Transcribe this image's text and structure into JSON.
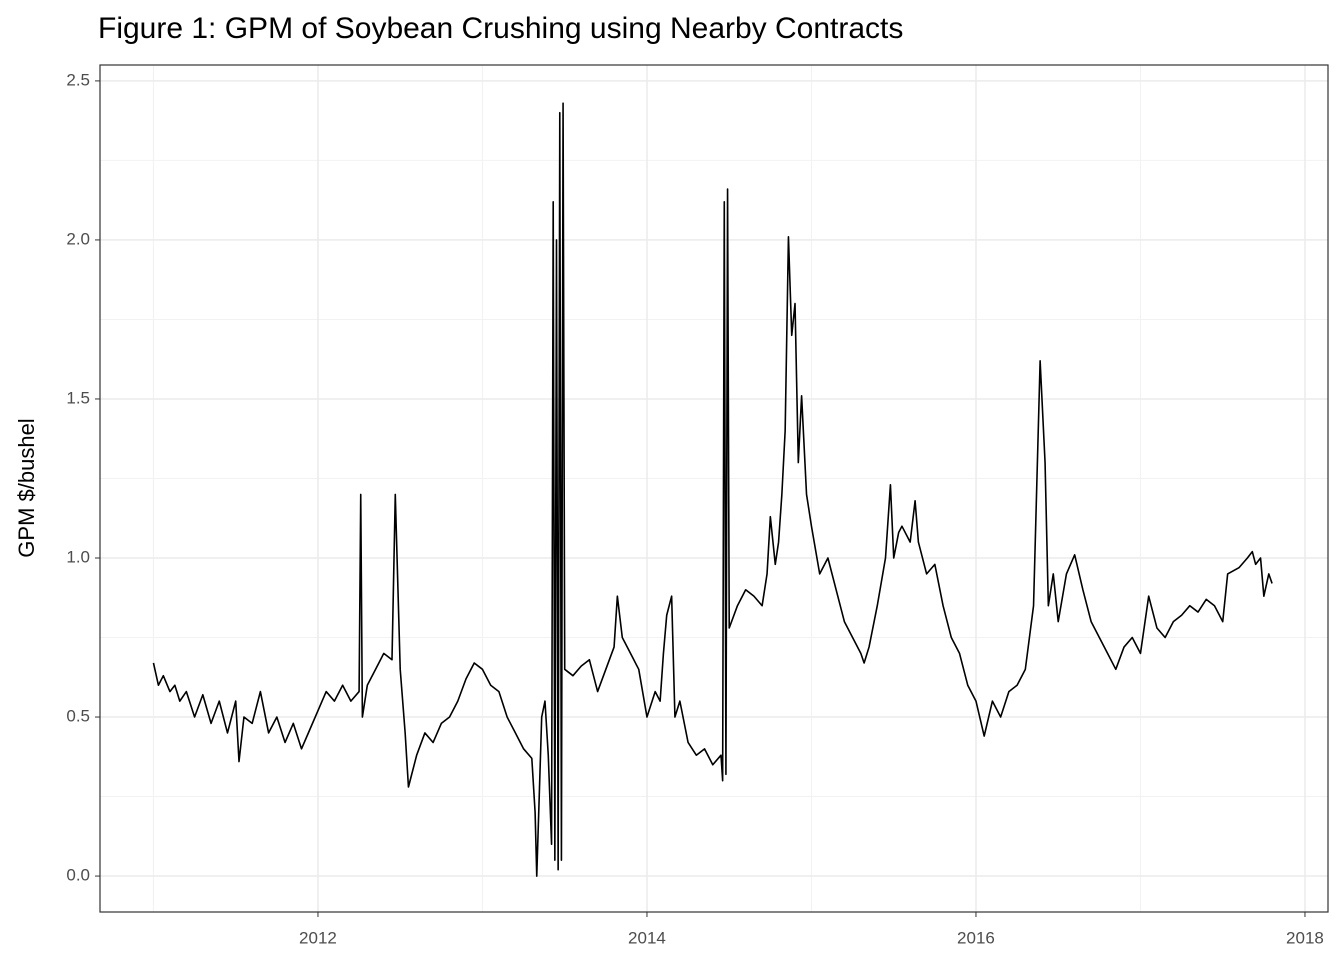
{
  "chart_data": {
    "type": "line",
    "title": "Figure 1: GPM of Soybean Crushing using Nearby Contracts",
    "y_label": "GPM $/bushel",
    "x": [
      2011.0,
      2011.03,
      2011.06,
      2011.1,
      2011.13,
      2011.16,
      2011.2,
      2011.25,
      2011.3,
      2011.35,
      2011.4,
      2011.45,
      2011.5,
      2011.52,
      2011.55,
      2011.6,
      2011.65,
      2011.7,
      2011.75,
      2011.8,
      2011.85,
      2011.9,
      2011.95,
      2012.0,
      2012.05,
      2012.1,
      2012.15,
      2012.2,
      2012.25,
      2012.26,
      2012.27,
      2012.3,
      2012.35,
      2012.4,
      2012.45,
      2012.47,
      2012.5,
      2012.53,
      2012.55,
      2012.6,
      2012.65,
      2012.7,
      2012.75,
      2012.8,
      2012.85,
      2012.9,
      2012.95,
      2013.0,
      2013.05,
      2013.1,
      2013.15,
      2013.2,
      2013.25,
      2013.3,
      2013.32,
      2013.33,
      2013.36,
      2013.38,
      2013.4,
      2013.42,
      2013.43,
      2013.44,
      2013.45,
      2013.46,
      2013.47,
      2013.48,
      2013.49,
      2013.5,
      2013.55,
      2013.6,
      2013.65,
      2013.7,
      2013.75,
      2013.8,
      2013.82,
      2013.85,
      2013.9,
      2013.95,
      2014.0,
      2014.05,
      2014.08,
      2014.1,
      2014.12,
      2014.15,
      2014.17,
      2014.2,
      2014.25,
      2014.3,
      2014.35,
      2014.4,
      2014.45,
      2014.46,
      2014.47,
      2014.48,
      2014.49,
      2014.5,
      2014.55,
      2014.6,
      2014.65,
      2014.7,
      2014.73,
      2014.75,
      2014.78,
      2014.8,
      2014.82,
      2014.84,
      2014.86,
      2014.88,
      2014.9,
      2014.92,
      2014.94,
      2014.97,
      2015.0,
      2015.05,
      2015.1,
      2015.15,
      2015.2,
      2015.25,
      2015.3,
      2015.32,
      2015.35,
      2015.4,
      2015.45,
      2015.48,
      2015.5,
      2015.53,
      2015.55,
      2015.6,
      2015.63,
      2015.65,
      2015.7,
      2015.75,
      2015.8,
      2015.85,
      2015.9,
      2015.95,
      2016.0,
      2016.05,
      2016.1,
      2016.15,
      2016.2,
      2016.25,
      2016.3,
      2016.35,
      2016.39,
      2016.42,
      2016.44,
      2016.47,
      2016.5,
      2016.55,
      2016.6,
      2016.65,
      2016.7,
      2016.75,
      2016.8,
      2016.85,
      2016.9,
      2016.95,
      2017.0,
      2017.05,
      2017.1,
      2017.15,
      2017.2,
      2017.25,
      2017.3,
      2017.35,
      2017.4,
      2017.45,
      2017.5,
      2017.53,
      2017.6,
      2017.65,
      2017.68,
      2017.7,
      2017.73,
      2017.75,
      2017.78,
      2017.8
    ],
    "series": [
      {
        "color": "#000000",
        "values": [
          0.67,
          0.6,
          0.63,
          0.58,
          0.6,
          0.55,
          0.58,
          0.5,
          0.57,
          0.48,
          0.55,
          0.45,
          0.55,
          0.36,
          0.5,
          0.48,
          0.58,
          0.45,
          0.5,
          0.42,
          0.48,
          0.4,
          0.46,
          0.52,
          0.58,
          0.55,
          0.6,
          0.55,
          0.58,
          1.2,
          0.5,
          0.6,
          0.65,
          0.7,
          0.68,
          1.2,
          0.65,
          0.45,
          0.28,
          0.38,
          0.45,
          0.42,
          0.48,
          0.5,
          0.55,
          0.62,
          0.67,
          0.65,
          0.6,
          0.58,
          0.5,
          0.45,
          0.4,
          0.37,
          0.2,
          0.0,
          0.5,
          0.55,
          0.38,
          0.1,
          2.12,
          0.05,
          2.0,
          0.02,
          2.4,
          0.05,
          2.43,
          0.65,
          0.63,
          0.66,
          0.68,
          0.58,
          0.65,
          0.72,
          0.88,
          0.75,
          0.7,
          0.65,
          0.5,
          0.58,
          0.55,
          0.7,
          0.82,
          0.88,
          0.5,
          0.55,
          0.42,
          0.38,
          0.4,
          0.35,
          0.38,
          0.3,
          2.12,
          0.32,
          2.16,
          0.78,
          0.85,
          0.9,
          0.88,
          0.85,
          0.95,
          1.13,
          0.98,
          1.05,
          1.2,
          1.4,
          2.01,
          1.7,
          1.8,
          1.3,
          1.51,
          1.2,
          1.1,
          0.95,
          1.0,
          0.9,
          0.8,
          0.75,
          0.7,
          0.67,
          0.72,
          0.85,
          1.0,
          1.23,
          1.0,
          1.08,
          1.1,
          1.05,
          1.18,
          1.05,
          0.95,
          0.98,
          0.85,
          0.75,
          0.7,
          0.6,
          0.55,
          0.44,
          0.55,
          0.5,
          0.58,
          0.6,
          0.65,
          0.85,
          1.62,
          1.3,
          0.85,
          0.95,
          0.8,
          0.95,
          1.01,
          0.9,
          0.8,
          0.75,
          0.7,
          0.65,
          0.72,
          0.75,
          0.7,
          0.88,
          0.78,
          0.75,
          0.8,
          0.82,
          0.85,
          0.83,
          0.87,
          0.85,
          0.8,
          0.95,
          0.97,
          1.0,
          1.02,
          0.98,
          1.0,
          0.88,
          0.95,
          0.92
        ]
      }
    ],
    "xlim": [
      2010.675,
      2018.14
    ],
    "xticks": [
      2012,
      2014,
      2016,
      2018
    ],
    "ylim": [
      -0.113,
      2.55
    ],
    "yticks": [
      {
        "value": 0,
        "label": "0.0"
      },
      0.5,
      {
        "value": 1,
        "label": "1.0"
      },
      1.5,
      {
        "value": 2,
        "label": "2.0"
      },
      2.5
    ],
    "grid": true
  }
}
